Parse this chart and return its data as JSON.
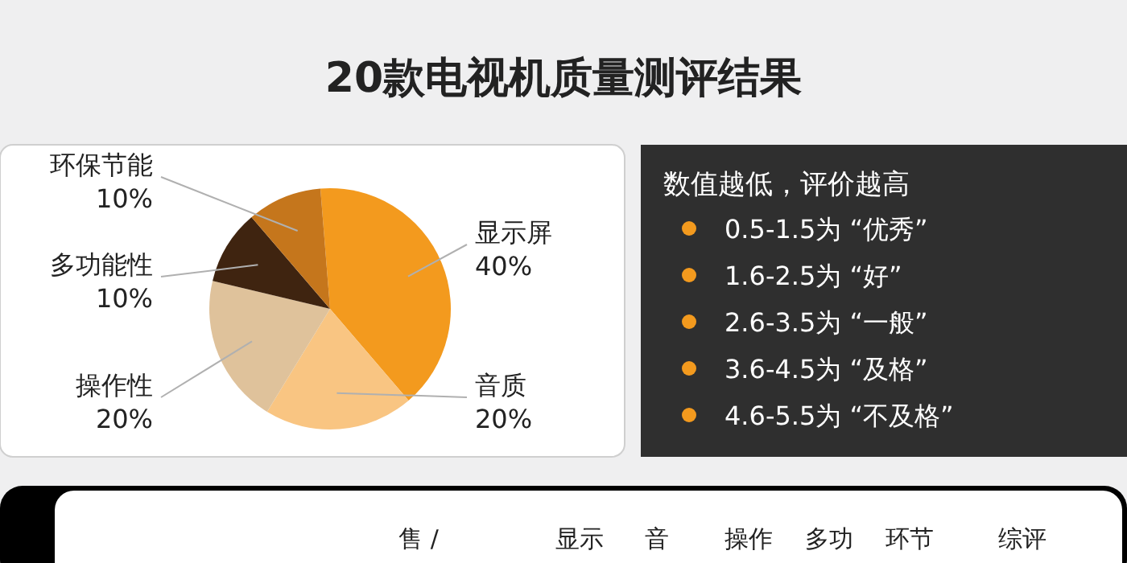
{
  "chart_data": [
    {
      "type": "pie",
      "title": "20款电视机质量测评结果",
      "categories": [
        "显示屏",
        "音质",
        "操作性",
        "多功能性",
        "环保节能"
      ],
      "values": [
        40,
        20,
        20,
        10,
        10
      ],
      "value_labels": [
        "40%",
        "20%",
        "20%",
        "10%",
        "10%"
      ],
      "colors": [
        "#f39a1e",
        "#f9c582",
        "#dfc29b",
        "#3f2410",
        "#c5761c"
      ]
    },
    {
      "type": "other",
      "title": "数值越低，评价越高",
      "annotations": [
        "0.5-1.5为 “优秀”",
        "1.6-2.5为 “好”",
        "2.6-3.5为 “一般”",
        "3.6-4.5为 “及格”",
        "4.6-5.5为 “不及格”"
      ]
    },
    {
      "type": "other",
      "annotations": [
        "售 /",
        "显示",
        "音",
        "操作",
        "多功",
        "环节",
        "综评"
      ]
    }
  ]
}
